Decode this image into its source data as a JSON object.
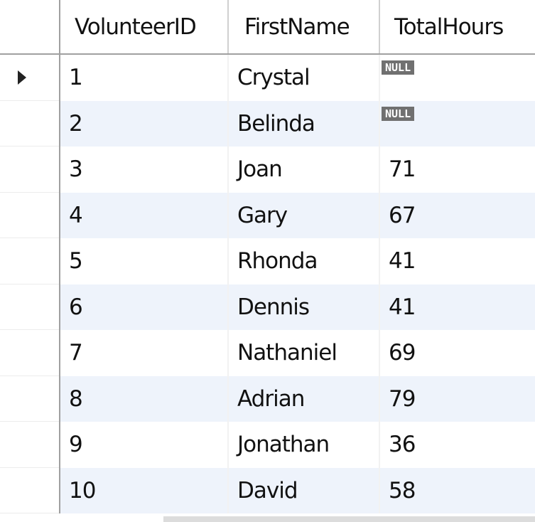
{
  "grid": {
    "columns": [
      "VolunteerID",
      "FirstName",
      "TotalHours"
    ],
    "rows": [
      {
        "VolunteerID": "1",
        "FirstName": "Crystal",
        "TotalHours": "NULL"
      },
      {
        "VolunteerID": "2",
        "FirstName": "Belinda",
        "TotalHours": "NULL"
      },
      {
        "VolunteerID": "3",
        "FirstName": "Joan",
        "TotalHours": "71"
      },
      {
        "VolunteerID": "4",
        "FirstName": "Gary",
        "TotalHours": "67"
      },
      {
        "VolunteerID": "5",
        "FirstName": "Rhonda",
        "TotalHours": "41"
      },
      {
        "VolunteerID": "6",
        "FirstName": "Dennis",
        "TotalHours": "41"
      },
      {
        "VolunteerID": "7",
        "FirstName": "Nathaniel",
        "TotalHours": "69"
      },
      {
        "VolunteerID": "8",
        "FirstName": "Adrian",
        "TotalHours": "79"
      },
      {
        "VolunteerID": "9",
        "FirstName": "Jonathan",
        "TotalHours": "36"
      },
      {
        "VolunteerID": "10",
        "FirstName": "David",
        "TotalHours": "58"
      }
    ],
    "current_row_indicator": "row-pointer-icon"
  },
  "colors": {
    "alt_row": "#eef3fb",
    "null_badge": "#707070",
    "header_border": "#a0a0a0"
  }
}
